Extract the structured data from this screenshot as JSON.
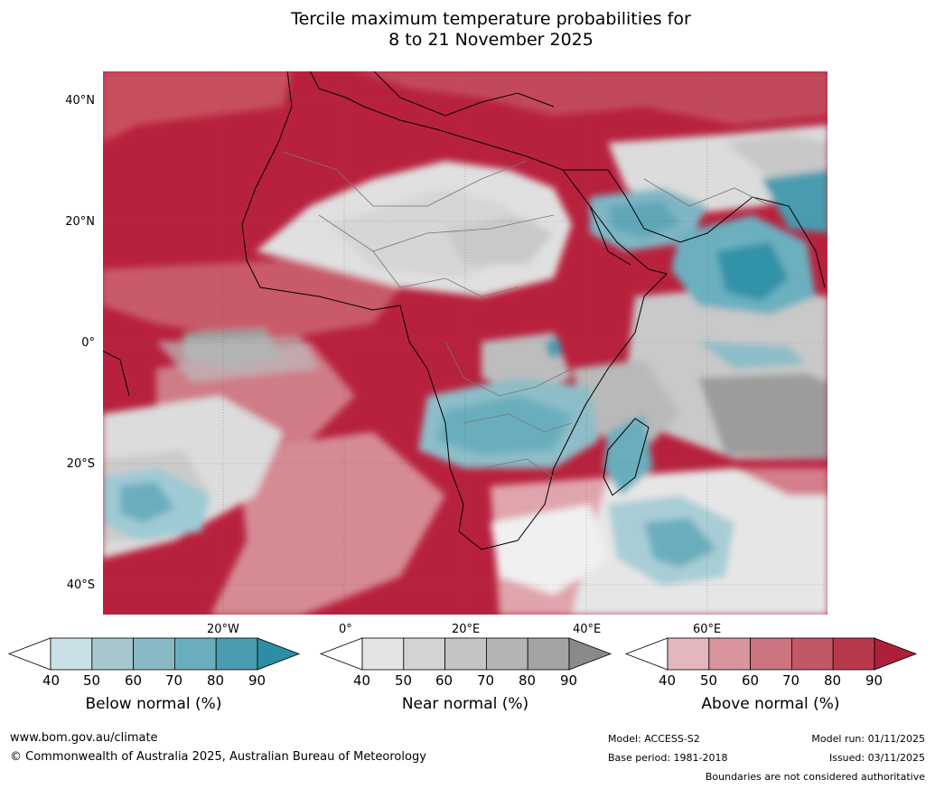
{
  "title_line1": "Tercile maximum temperature probabilities for",
  "title_line2": "8 to 21 November 2025",
  "lat_labels": [
    "40°N",
    "20°N",
    "0°",
    "20°S",
    "40°S"
  ],
  "lon_labels": [
    "20°W",
    "0°",
    "20°E",
    "40°E",
    "60°E"
  ],
  "colorbars": [
    {
      "name": "below",
      "title": "Below normal (%)",
      "ticks": [
        "40",
        "50",
        "60",
        "70",
        "80",
        "90"
      ],
      "colors": [
        "#c8e0e6",
        "#a7c7cf",
        "#88b8c4",
        "#6aaebd",
        "#4a9cb0"
      ],
      "extend": "#2b8ea4"
    },
    {
      "name": "near",
      "title": "Near normal (%)",
      "ticks": [
        "40",
        "50",
        "60",
        "70",
        "80",
        "90"
      ],
      "colors": [
        "#e4e4e4",
        "#d3d3d3",
        "#c4c4c4",
        "#b4b4b4",
        "#a4a4a4"
      ],
      "extend": "#8a8a8a"
    },
    {
      "name": "above",
      "title": "Above normal (%)",
      "ticks": [
        "40",
        "50",
        "60",
        "70",
        "80",
        "90"
      ],
      "colors": [
        "#e2b7bd",
        "#d8959e",
        "#cb737e",
        "#c25765",
        "#b8394c"
      ],
      "extend": "#ad1f3a"
    }
  ],
  "footer": {
    "website": "www.bom.gov.au/climate",
    "copyright": "© Commonwealth of Australia 2025, Australian Bureau of Meteorology",
    "model": "Model: ACCESS-S2",
    "base_period": "Base period: 1981-2018",
    "model_run": "Model run: 01/11/2025",
    "issued": "Issued: 03/11/2025",
    "disclaimer": "Boundaries are not considered authoritative"
  }
}
